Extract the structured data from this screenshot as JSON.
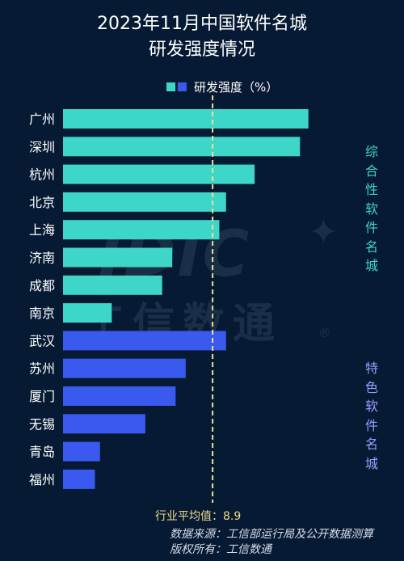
{
  "header": {
    "title_line1": "2023年11月中国软件名城",
    "title_line2": "研发强度情况"
  },
  "legend": {
    "label": "研发强度（%）"
  },
  "group_labels": {
    "comprehensive": "综合性软件名城",
    "specialty": "特色软件名城"
  },
  "watermark": {
    "logo": "IDIC",
    "name": "工信数通",
    "registered": "®"
  },
  "footer": {
    "average_note": "行业平均值：8.9",
    "source": "数据来源：工信部运行局及公开数据测算",
    "copyright": "版权所有：工信数通"
  },
  "colors": {
    "comprehensive": "#3dd6c8",
    "specialty": "#3a59ee",
    "average_line": "#f0e08a",
    "background": "#061a33"
  },
  "chart_data": {
    "type": "bar",
    "orientation": "horizontal",
    "categories": [
      "广州",
      "深圳",
      "杭州",
      "北京",
      "上海",
      "济南",
      "成都",
      "南京",
      "武汉",
      "苏州",
      "厦门",
      "无锡",
      "青岛",
      "福州"
    ],
    "values": [
      14.6,
      14.1,
      11.4,
      9.7,
      9.3,
      6.5,
      5.9,
      2.9,
      9.7,
      7.3,
      6.7,
      4.9,
      2.2,
      1.9
    ],
    "groups": [
      "综合性软件名城",
      "综合性软件名城",
      "综合性软件名城",
      "综合性软件名城",
      "综合性软件名城",
      "综合性软件名城",
      "综合性软件名城",
      "综合性软件名城",
      "特色软件名城",
      "特色软件名城",
      "特色软件名城",
      "特色软件名城",
      "特色软件名城",
      "特色软件名城"
    ],
    "average": 8.9,
    "xlim": [
      0,
      20
    ],
    "grid": false,
    "legend_position": "top"
  }
}
